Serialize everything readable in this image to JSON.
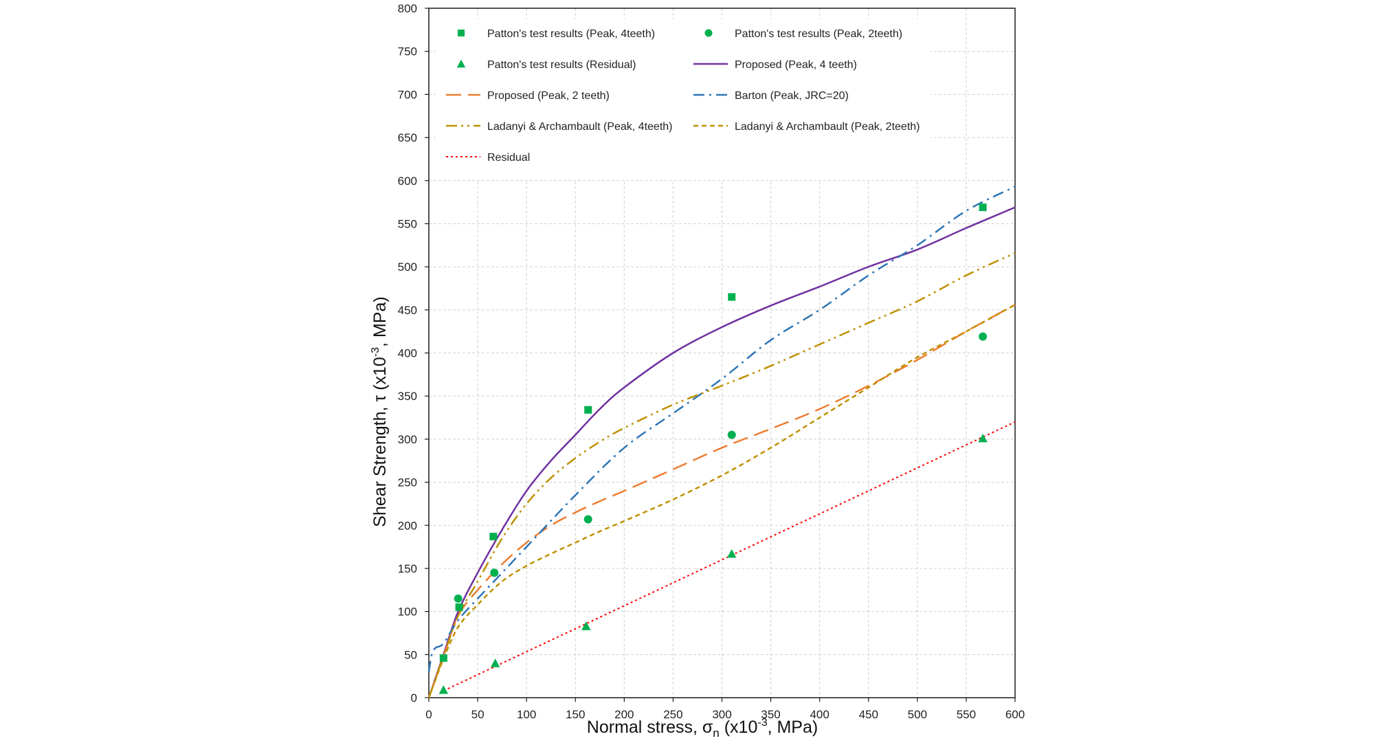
{
  "chart_data": {
    "type": "scatter",
    "xlabel": {
      "main": "Normal stress, σ",
      "sub": "n",
      "paren": " (x10",
      "sup": "-3",
      "tail": ", MPa)"
    },
    "ylabel": {
      "main": "Shear Strength, τ (x10",
      "sup": "-3",
      "tail": ", MPa)"
    },
    "xlim": [
      0,
      600
    ],
    "ylim": [
      0,
      800
    ],
    "xticks": [
      0,
      50,
      100,
      150,
      200,
      250,
      300,
      350,
      400,
      450,
      500,
      550,
      600
    ],
    "yticks": [
      0,
      50,
      100,
      150,
      200,
      250,
      300,
      350,
      400,
      450,
      500,
      550,
      600,
      650,
      700,
      750,
      800
    ],
    "grid": true,
    "legend_position": "top",
    "series": [
      {
        "name": "Patton's test results (Peak, 4teeth)",
        "kind": "marker",
        "marker": "square",
        "color": "#00b050",
        "x": [
          15,
          31,
          66,
          163,
          310,
          567
        ],
        "y": [
          46,
          105,
          187,
          334,
          465,
          569
        ]
      },
      {
        "name": "Patton's test results (Peak, 2teeth)",
        "kind": "marker",
        "marker": "circle",
        "color": "#00b050",
        "x": [
          30,
          67,
          163,
          310,
          567
        ],
        "y": [
          115,
          145,
          207,
          305,
          419
        ]
      },
      {
        "name": "Patton's test results (Residual)",
        "kind": "marker",
        "marker": "triangle",
        "color": "#00b050",
        "x": [
          15,
          68,
          161,
          310,
          567
        ],
        "y": [
          9,
          40,
          83,
          167,
          301
        ]
      },
      {
        "name": "Proposed (Peak, 4 teeth)",
        "kind": "line",
        "dash": "",
        "width": 2.5,
        "color": "#7030a0",
        "x": [
          0,
          15,
          30,
          50,
          75,
          100,
          125,
          150,
          175,
          200,
          250,
          300,
          350,
          400,
          450,
          500,
          550,
          600
        ],
        "y": [
          0,
          50,
          100,
          145,
          195,
          240,
          275,
          305,
          335,
          360,
          400,
          430,
          455,
          477,
          500,
          520,
          545,
          569
        ]
      },
      {
        "name": "Proposed (Peak, 2 teeth)",
        "kind": "line",
        "dash": "22,10",
        "width": 2.5,
        "color": "#ed7d31",
        "x": [
          0,
          15,
          30,
          50,
          75,
          100,
          125,
          150,
          175,
          200,
          250,
          300,
          350,
          400,
          450,
          500,
          550,
          600
        ],
        "y": [
          0,
          48,
          95,
          125,
          155,
          180,
          200,
          215,
          228,
          240,
          265,
          290,
          312,
          335,
          362,
          392,
          425,
          456
        ]
      },
      {
        "name": "Barton (Peak, JRC=20)",
        "kind": "line",
        "dash": "16,7,3,7",
        "width": 2.5,
        "color": "#2e75b6",
        "x": [
          0,
          3,
          7,
          15,
          30,
          50,
          75,
          100,
          150,
          200,
          250,
          300,
          350,
          400,
          450,
          500,
          550,
          600
        ],
        "y": [
          30,
          50,
          58,
          63,
          90,
          115,
          145,
          175,
          235,
          290,
          330,
          370,
          415,
          450,
          490,
          525,
          565,
          593
        ]
      },
      {
        "name": "Ladanyi & Archambault (Peak, 4teeth)",
        "kind": "line",
        "dash": "16,6,3,6,3,6",
        "width": 2.5,
        "color": "#bf9000",
        "x": [
          0,
          15,
          30,
          50,
          75,
          100,
          125,
          150,
          175,
          200,
          250,
          300,
          350,
          400,
          450,
          500,
          550,
          600
        ],
        "y": [
          0,
          48,
          95,
          135,
          185,
          225,
          255,
          278,
          297,
          313,
          340,
          362,
          385,
          410,
          435,
          460,
          490,
          516
        ]
      },
      {
        "name": "Ladanyi & Archambault (Peak, 2teeth)",
        "kind": "line",
        "dash": "7,5",
        "width": 2.5,
        "color": "#bf9000",
        "x": [
          0,
          15,
          30,
          50,
          75,
          100,
          125,
          150,
          175,
          200,
          250,
          300,
          350,
          400,
          450,
          500,
          550,
          600
        ],
        "y": [
          0,
          45,
          82,
          108,
          135,
          153,
          167,
          180,
          193,
          205,
          230,
          258,
          290,
          325,
          360,
          395,
          425,
          456
        ]
      },
      {
        "name": "Residual",
        "kind": "line",
        "dash": "3,4",
        "width": 2,
        "color": "#ff0000",
        "x": [
          15,
          600
        ],
        "y": [
          8,
          320
        ]
      }
    ]
  }
}
